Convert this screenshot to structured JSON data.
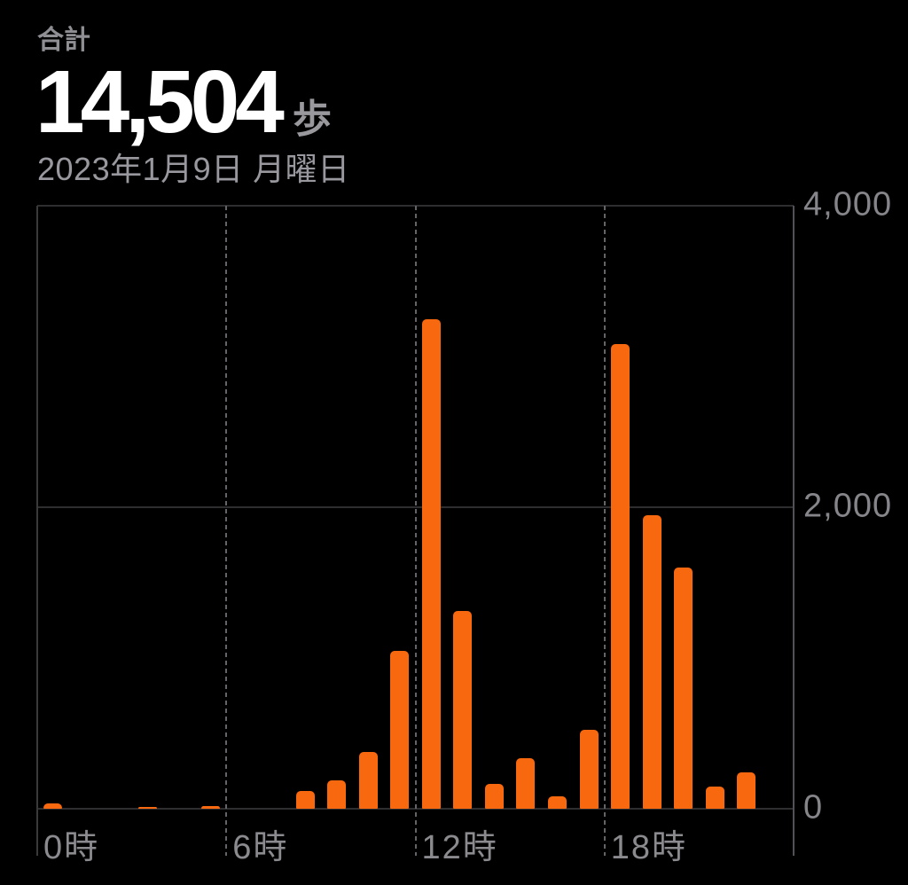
{
  "header": {
    "total_label": "合計",
    "total_value": "14,504",
    "total_unit": "歩",
    "date": "2023年1月9日 月曜日"
  },
  "chart_data": {
    "type": "bar",
    "title": "",
    "xlabel": "",
    "ylabel": "",
    "unit": "歩",
    "x_hours": [
      0,
      1,
      2,
      3,
      4,
      5,
      6,
      7,
      8,
      9,
      10,
      11,
      12,
      13,
      14,
      15,
      16,
      17,
      18,
      19,
      20,
      21,
      22,
      23
    ],
    "values": [
      35,
      0,
      0,
      12,
      0,
      20,
      0,
      0,
      120,
      190,
      378,
      1050,
      3245,
      1315,
      166,
      336,
      84,
      525,
      3085,
      1950,
      1602,
      148,
      243,
      0
    ],
    "total": 14504,
    "ylim": [
      0,
      4000
    ],
    "xlim_hours": [
      0,
      24
    ],
    "grid": "horizontal-solid, vertical-dashed-every-6h",
    "legend": "none",
    "y_ticks": [
      {
        "value": 4000,
        "label": "4,000"
      },
      {
        "value": 2000,
        "label": "2,000"
      },
      {
        "value": 0,
        "label": "0"
      }
    ],
    "x_ticks": [
      {
        "hour": 0,
        "label": "0時"
      },
      {
        "hour": 6,
        "label": "6時"
      },
      {
        "hour": 12,
        "label": "12時"
      },
      {
        "hour": 18,
        "label": "18時"
      }
    ],
    "x_gridlines": [
      {
        "hour": 0,
        "style": "solid"
      },
      {
        "hour": 6,
        "style": "dashed"
      },
      {
        "hour": 12,
        "style": "dashed"
      },
      {
        "hour": 18,
        "style": "dashed"
      },
      {
        "hour": 24,
        "style": "axis"
      }
    ],
    "bar_color": "#F8680F"
  },
  "colors": {
    "background": "#000000",
    "bar": "#F8680F",
    "value_text": "#FFFFFF",
    "secondary_text": "#98989E",
    "tick_text": "#8A8A8F",
    "gridline": "#2E2E31"
  }
}
